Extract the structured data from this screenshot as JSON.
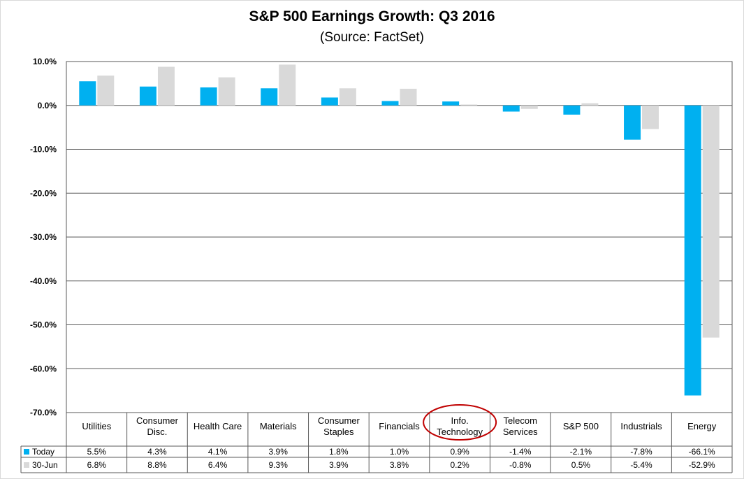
{
  "chart_data": {
    "type": "bar",
    "title": "S&P 500 Earnings Growth: Q3 2016",
    "subtitle": "(Source: FactSet)",
    "categories": [
      "Utilities",
      "Consumer Disc.",
      "Health Care",
      "Materials",
      "Consumer Staples",
      "Financials",
      "Info. Technology",
      "Telecom Services",
      "S&P 500",
      "Industrials",
      "Energy"
    ],
    "series": [
      {
        "name": "Today",
        "values": [
          5.5,
          4.3,
          4.1,
          3.9,
          1.8,
          1.0,
          0.9,
          -1.4,
          -2.1,
          -7.8,
          -66.1
        ],
        "labels": [
          "5.5%",
          "4.3%",
          "4.1%",
          "3.9%",
          "1.8%",
          "1.0%",
          "0.9%",
          "-1.4%",
          "-2.1%",
          "-7.8%",
          "-66.1%"
        ],
        "color": "#00b0f0"
      },
      {
        "name": "30-Jun",
        "values": [
          6.8,
          8.8,
          6.4,
          9.3,
          3.9,
          3.8,
          0.2,
          -0.8,
          0.5,
          -5.4,
          -52.9
        ],
        "labels": [
          "6.8%",
          "8.8%",
          "6.4%",
          "9.3%",
          "3.9%",
          "3.8%",
          "0.2%",
          "-0.8%",
          "0.5%",
          "-5.4%",
          "-52.9%"
        ],
        "color": "#d9d9d9"
      }
    ],
    "ylim": [
      -70,
      10
    ],
    "yticks": [
      10,
      0,
      -10,
      -20,
      -30,
      -40,
      -50,
      -60,
      -70
    ],
    "ytick_labels": [
      "10.0%",
      "0.0%",
      "-10.0%",
      "-20.0%",
      "-30.0%",
      "-40.0%",
      "-50.0%",
      "-60.0%",
      "-70.0%"
    ],
    "grid": true,
    "legend": "data-table",
    "annotation": {
      "type": "circle",
      "category": "Info. Technology",
      "color": "#c00000"
    }
  }
}
